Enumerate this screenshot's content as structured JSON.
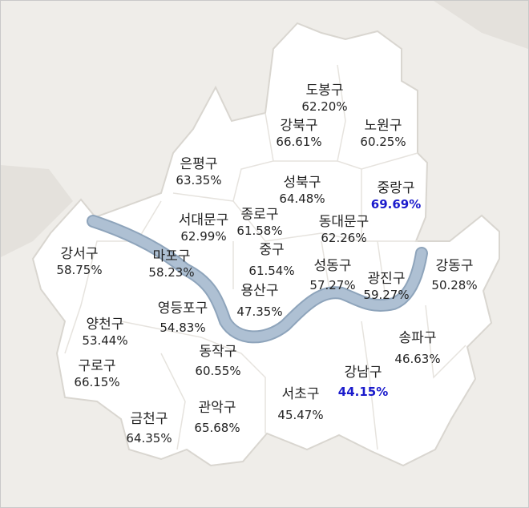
{
  "colors": {
    "land": "#ffffff",
    "background": "#efede9",
    "river": "#a9bcd1",
    "highlight": "#1a1acc",
    "text": "#222222"
  },
  "districts": [
    {
      "name": "도봉구",
      "value": "62.20%"
    },
    {
      "name": "강북구",
      "value": "66.61%"
    },
    {
      "name": "노원구",
      "value": "60.25%"
    },
    {
      "name": "은평구",
      "value": "63.35%"
    },
    {
      "name": "성북구",
      "value": "64.48%"
    },
    {
      "name": "중랑구",
      "value": "69.69%",
      "highlight": "max"
    },
    {
      "name": "서대문구",
      "value": "62.99%"
    },
    {
      "name": "종로구",
      "value": "61.58%"
    },
    {
      "name": "동대문구",
      "value": "62.26%"
    },
    {
      "name": "강서구",
      "value": "58.75%"
    },
    {
      "name": "마포구",
      "value": "58.23%"
    },
    {
      "name": "중구",
      "value": "61.54%"
    },
    {
      "name": "성동구",
      "value": "57.27%"
    },
    {
      "name": "광진구",
      "value": "59.27%"
    },
    {
      "name": "강동구",
      "value": "50.28%"
    },
    {
      "name": "용산구",
      "value": "47.35%"
    },
    {
      "name": "영등포구",
      "value": "54.83%"
    },
    {
      "name": "양천구",
      "value": "53.44%"
    },
    {
      "name": "송파구",
      "value": "46.63%"
    },
    {
      "name": "동작구",
      "value": "60.55%"
    },
    {
      "name": "구로구",
      "value": "66.15%"
    },
    {
      "name": "강남구",
      "value": "44.15%",
      "highlight": "min"
    },
    {
      "name": "서초구",
      "value": "45.47%"
    },
    {
      "name": "관악구",
      "value": "65.68%"
    },
    {
      "name": "금천구",
      "value": "64.35%"
    }
  ]
}
